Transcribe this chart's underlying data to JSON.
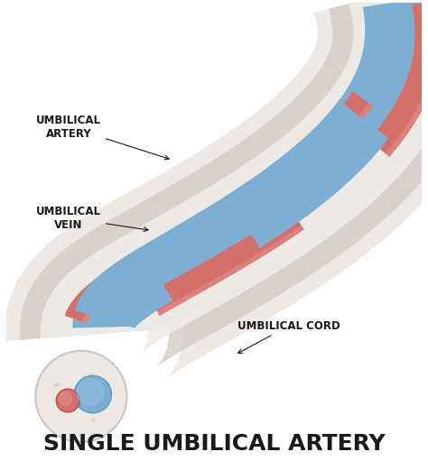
{
  "title": "SINGLE UMBILICAL ARTERY",
  "title_fontsize": 18,
  "title_fontweight": "bold",
  "labels": {
    "artery": "UMBILICAL\nARTERY",
    "vein": "UMBILICAL\nVEIN",
    "cord": "UMBILICAL CORD"
  },
  "colors": {
    "background": "#ffffff",
    "cord_outer": "#e8e0da",
    "cord_outer2": "#d4ccc5",
    "vein_blue": "#7dafd4",
    "vein_blue_dark": "#5a9cc5",
    "artery_red": "#d4706a",
    "artery_red_dark": "#c05555",
    "cross_section_bg": "#ede8e4",
    "cross_section_border": "#ccc5be",
    "cs_artery": "#d4706a",
    "cs_vein": "#7dafd4",
    "label_color": "#1a1a1a",
    "line_color": "#1a1a1a"
  },
  "figsize": [
    4.74,
    5.11
  ],
  "dpi": 100
}
